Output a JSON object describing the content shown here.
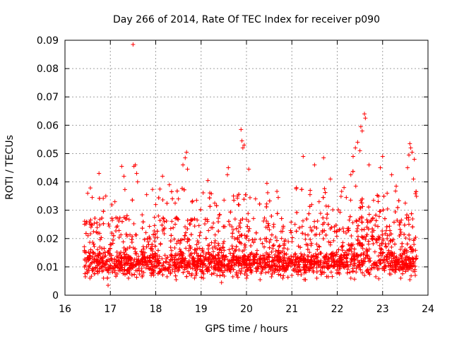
{
  "chart_data": {
    "type": "scatter",
    "title": "Day 266 of 2014, Rate Of TEC Index for receiver p090",
    "xlabel": "GPS time / hours",
    "ylabel": "ROTI / TECUs",
    "xlim": [
      16,
      24
    ],
    "ylim": [
      0,
      0.09
    ],
    "xticks": [
      "16",
      "17",
      "18",
      "19",
      "20",
      "21",
      "22",
      "23",
      "24"
    ],
    "yticks": [
      "0",
      "0.01",
      "0.02",
      "0.03",
      "0.04",
      "0.05",
      "0.06",
      "0.07",
      "0.08",
      "0.09"
    ],
    "grid": true,
    "marker": "+",
    "color": "#ff0000",
    "series": [
      {
        "name": "p090",
        "points": [
          [
            17.5,
            0.0885
          ],
          [
            19.88,
            0.0585
          ],
          [
            19.9,
            0.0545
          ],
          [
            19.92,
            0.052
          ],
          [
            19.95,
            0.053
          ],
          [
            22.6,
            0.064
          ],
          [
            22.62,
            0.0625
          ],
          [
            22.52,
            0.0595
          ],
          [
            22.55,
            0.058
          ],
          [
            22.45,
            0.054
          ],
          [
            22.5,
            0.051
          ],
          [
            22.4,
            0.052
          ],
          [
            22.35,
            0.049
          ],
          [
            22.7,
            0.046
          ],
          [
            22.3,
            0.0425
          ],
          [
            23.6,
            0.0535
          ],
          [
            23.65,
            0.0505
          ],
          [
            23.58,
            0.0495
          ],
          [
            23.7,
            0.048
          ],
          [
            23.62,
            0.052
          ],
          [
            23.55,
            0.045
          ],
          [
            23.68,
            0.041
          ],
          [
            18.68,
            0.0505
          ],
          [
            18.65,
            0.0485
          ],
          [
            18.6,
            0.046
          ],
          [
            18.7,
            0.0445
          ],
          [
            17.55,
            0.046
          ],
          [
            17.52,
            0.0455
          ],
          [
            17.58,
            0.043
          ],
          [
            17.6,
            0.04
          ],
          [
            21.25,
            0.049
          ],
          [
            21.5,
            0.046
          ],
          [
            21.7,
            0.0485
          ],
          [
            23.0,
            0.049
          ],
          [
            22.95,
            0.045
          ],
          [
            16.75,
            0.043
          ],
          [
            17.25,
            0.0455
          ],
          [
            17.3,
            0.042
          ],
          [
            18.15,
            0.042
          ],
          [
            18.3,
            0.039
          ],
          [
            19.15,
            0.0405
          ],
          [
            19.6,
            0.045
          ],
          [
            19.58,
            0.0425
          ],
          [
            20.05,
            0.0445
          ],
          [
            20.45,
            0.0395
          ],
          [
            21.85,
            0.041
          ],
          [
            22.15,
            0.038
          ],
          [
            23.2,
            0.0425
          ],
          [
            23.3,
            0.0385
          ],
          [
            21.1,
            0.038
          ],
          [
            16.5,
            0.036
          ],
          [
            16.6,
            0.0345
          ],
          [
            16.9,
            0.035
          ],
          [
            17.1,
            0.033
          ],
          [
            17.8,
            0.0355
          ],
          [
            18.0,
            0.032
          ],
          [
            18.5,
            0.034
          ],
          [
            18.9,
            0.0335
          ],
          [
            19.3,
            0.0325
          ],
          [
            19.8,
            0.035
          ],
          [
            20.2,
            0.034
          ],
          [
            20.7,
            0.0345
          ],
          [
            21.4,
            0.0355
          ],
          [
            21.6,
            0.033
          ],
          [
            22.2,
            0.0345
          ],
          [
            22.8,
            0.0335
          ],
          [
            23.1,
            0.036
          ],
          [
            23.5,
            0.0325
          ],
          [
            16.45,
            0.0065
          ],
          [
            16.48,
            0.009
          ],
          [
            16.55,
            0.006
          ],
          [
            16.65,
            0.0075
          ],
          [
            16.85,
            0.006
          ],
          [
            16.95,
            0.0035
          ],
          [
            17.15,
            0.0075
          ],
          [
            17.4,
            0.006
          ],
          [
            17.7,
            0.0065
          ],
          [
            17.9,
            0.007
          ],
          [
            18.25,
            0.0065
          ],
          [
            18.45,
            0.0055
          ],
          [
            18.8,
            0.0075
          ],
          [
            19.05,
            0.006
          ],
          [
            19.35,
            0.007
          ],
          [
            19.45,
            0.0045
          ],
          [
            19.7,
            0.0065
          ],
          [
            20.0,
            0.006
          ],
          [
            20.3,
            0.0055
          ],
          [
            20.55,
            0.0065
          ],
          [
            20.8,
            0.006
          ],
          [
            21.0,
            0.007
          ],
          [
            21.3,
            0.0055
          ],
          [
            21.55,
            0.006
          ],
          [
            21.8,
            0.0065
          ],
          [
            22.05,
            0.0075
          ],
          [
            22.3,
            0.006
          ],
          [
            22.6,
            0.007
          ],
          [
            22.85,
            0.0065
          ],
          [
            23.15,
            0.0075
          ],
          [
            23.4,
            0.006
          ],
          [
            23.6,
            0.0055
          ],
          [
            23.72,
            0.007
          ]
        ]
      }
    ]
  }
}
